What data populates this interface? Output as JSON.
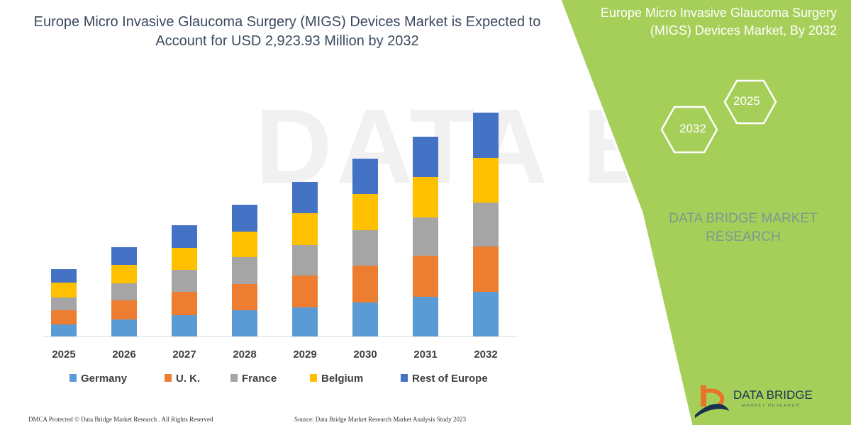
{
  "chart_data": {
    "type": "bar",
    "stacked": true,
    "title": "Europe Micro Invasive Glaucoma Surgery (MIGS) Devices Market is Expected to Account for USD 2,923.93 Million by 2032",
    "categories": [
      "2025",
      "2026",
      "2027",
      "2028",
      "2029",
      "2030",
      "2031",
      "2032"
    ],
    "series": [
      {
        "name": "Germany",
        "color": "#5b9bd5",
        "values": [
          17,
          24,
          30,
          37,
          41,
          48,
          56,
          63
        ]
      },
      {
        "name": "U. K.",
        "color": "#ed7d31",
        "values": [
          20,
          27,
          33,
          37,
          45,
          52,
          58,
          64
        ]
      },
      {
        "name": "France",
        "color": "#a5a5a5",
        "values": [
          18,
          24,
          31,
          38,
          43,
          50,
          54,
          62
        ]
      },
      {
        "name": "Belgium",
        "color": "#ffc000",
        "values": [
          21,
          26,
          31,
          36,
          45,
          51,
          57,
          63
        ]
      },
      {
        "name": "Rest of Europe",
        "color": "#4472c4",
        "values": [
          19,
          25,
          32,
          38,
          44,
          50,
          57,
          64
        ]
      }
    ],
    "legend_position": "bottom",
    "grid": false
  },
  "footer": {
    "left": "DMCA Protected © Data Bridge Market Research . All Rights Reserved",
    "right": "Source: Data Bridge Market Research Market Analysis Study 2023"
  },
  "side_panel": {
    "title": "Europe Micro Invasive Glaucoma Surgery (MIGS) Devices Market, By 2032",
    "hex_1": "2025",
    "hex_2": "2032",
    "brand": "DATA BRIDGE MARKET RESEARCH",
    "logo_text": "DATA BRIDGE",
    "logo_sub": "MARKET RESEARCH"
  },
  "watermark": "DATA BRIDGE",
  "colors": {
    "panel_green": "#a6cf5a",
    "title_text": "#3a4a5e",
    "brand_text": "#7a9a92"
  }
}
